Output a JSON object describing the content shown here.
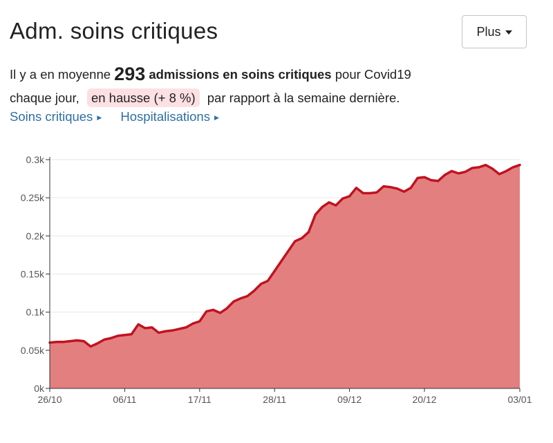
{
  "header": {
    "title": "Adm. soins critiques",
    "more_button": "Plus"
  },
  "summary": {
    "prefix": "Il y a en moyenne",
    "value": "293",
    "metric": "admissions en soins critiques",
    "after_metric": "pour Covid19",
    "line2_prefix": "chaque jour,",
    "trend": "en hausse (+ 8 %)",
    "suffix": "par rapport à la semaine dernière."
  },
  "links": [
    {
      "label": "Soins critiques"
    },
    {
      "label": "Hospitalisations"
    }
  ],
  "colors": {
    "line": "#c1121f",
    "area": "#e37f7f",
    "grid": "#e6e6e6",
    "axis": "#333333"
  },
  "chart_data": {
    "type": "area",
    "title": "",
    "xlabel": "",
    "ylabel": "",
    "ylim": [
      0,
      300
    ],
    "yticks": [
      0,
      50,
      100,
      150,
      200,
      250,
      300
    ],
    "ytick_labels": [
      "0k",
      "0.05k",
      "0.1k",
      "0.15k",
      "0.2k",
      "0.25k",
      "0.3k"
    ],
    "x_tick_labels": [
      "26/10",
      "06/11",
      "17/11",
      "28/11",
      "09/12",
      "20/12",
      "03/01"
    ],
    "x_tick_days": [
      0,
      11,
      22,
      33,
      44,
      55,
      69
    ],
    "x_domain_days": [
      0,
      69
    ],
    "grid": true,
    "series": [
      {
        "name": "Adm. soins critiques",
        "days": [
          0,
          1,
          2,
          3,
          4,
          5,
          6,
          7,
          8,
          9,
          10,
          11,
          12,
          13,
          14,
          15,
          16,
          17,
          18,
          19,
          20,
          21,
          22,
          23,
          24,
          25,
          26,
          27,
          28,
          29,
          30,
          31,
          32,
          33,
          34,
          35,
          36,
          37,
          38,
          39,
          40,
          41,
          42,
          43,
          44,
          45,
          46,
          47,
          48,
          49,
          50,
          51,
          52,
          53,
          54,
          55,
          56,
          57,
          58,
          59,
          60,
          61,
          62,
          63,
          64,
          65,
          66,
          67,
          68,
          69
        ],
        "values": [
          60,
          61,
          61,
          62,
          63,
          62,
          55,
          59,
          64,
          66,
          69,
          70,
          71,
          84,
          79,
          80,
          73,
          75,
          76,
          78,
          80,
          85,
          88,
          101,
          103,
          99,
          105,
          114,
          118,
          121,
          128,
          137,
          141,
          154,
          167,
          180,
          193,
          197,
          205,
          228,
          238,
          244,
          240,
          249,
          252,
          263,
          256,
          256,
          257,
          265,
          264,
          262,
          258,
          263,
          276,
          277,
          273,
          272,
          280,
          285,
          282,
          284,
          289,
          290,
          293,
          288,
          281,
          285,
          290,
          293
        ]
      }
    ]
  }
}
